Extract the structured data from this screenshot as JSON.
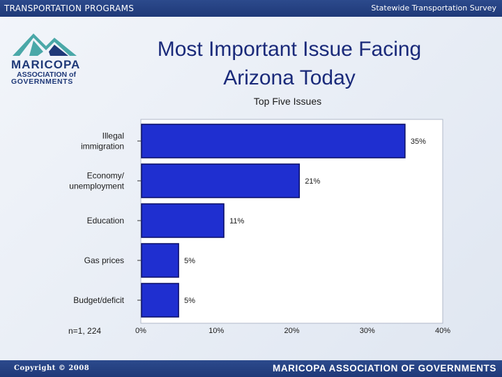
{
  "header": {
    "left_text": "TRANSPORTATION PROGRAMS",
    "right_text": "Statewide Transportation Survey"
  },
  "logo": {
    "line1": "MARICOPA",
    "line2": "ASSOCIATION of",
    "line3": "GOVERNMENTS",
    "colors": {
      "teal": "#4aa8a8",
      "navy": "#1f3978"
    }
  },
  "slide": {
    "title_line1": "Most Important Issue Facing",
    "title_line2": "Arizona Today",
    "subtitle": "Top Five Issues",
    "sample_note": "n=1, 224"
  },
  "chart_data": {
    "type": "bar",
    "orientation": "horizontal",
    "title": "Most Important Issue Facing Arizona Today",
    "subtitle": "Top Five Issues",
    "categories": [
      "Illegal immigration",
      "Economy/ unemployment",
      "Education",
      "Gas prices",
      "Budget/deficit"
    ],
    "category_lines": [
      [
        "Illegal",
        "immigration"
      ],
      [
        "Economy/",
        "unemployment"
      ],
      [
        "Education"
      ],
      [
        "Gas prices"
      ],
      [
        "Budget/deficit"
      ]
    ],
    "values": [
      35,
      21,
      11,
      5,
      5
    ],
    "data_labels": [
      "35%",
      "21%",
      "11%",
      "5%",
      "5%"
    ],
    "xlim": [
      0,
      40
    ],
    "x_ticks": [
      "0%",
      "10%",
      "20%",
      "30%",
      "40%"
    ],
    "grid": false,
    "bar_color": "#1f2fd0",
    "bar_edge_color": "#0a0f66"
  },
  "footer": {
    "copyright": "Copyright © 2008",
    "brand": "MARICOPA ASSOCIATION OF GOVERNMENTS"
  }
}
